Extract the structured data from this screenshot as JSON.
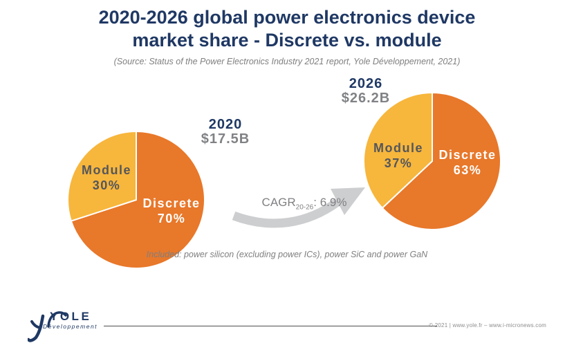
{
  "title": {
    "line1": "2020-2026 global power electronics device",
    "line2": "market share - Discrete vs. module"
  },
  "source_note": "(Source: Status of the Power Electronics Industry 2021 report, Yole Développement, 2021)",
  "chart_data": [
    {
      "type": "pie",
      "title": "2020",
      "subtitle": "$17.5B",
      "categories": [
        "Discrete",
        "Module"
      ],
      "values": [
        70,
        30
      ],
      "unit": "percent",
      "labels_position": "inside",
      "slices": [
        {
          "label": "Discrete",
          "pct": 70,
          "display": "70%",
          "color": "#E8782A",
          "text_color": "#FFFFFF"
        },
        {
          "label": "Module",
          "pct": 30,
          "display": "30%",
          "color": "#F7B63C",
          "text_color": "#54565B"
        }
      ]
    },
    {
      "type": "pie",
      "title": "2026",
      "subtitle": "$26.2B",
      "categories": [
        "Discrete",
        "Module"
      ],
      "values": [
        63,
        37
      ],
      "unit": "percent",
      "labels_position": "inside",
      "slices": [
        {
          "label": "Discrete",
          "pct": 63,
          "display": "63%",
          "color": "#E8782A",
          "text_color": "#FFFFFF"
        },
        {
          "label": "Module",
          "pct": 37,
          "display": "37%",
          "color": "#F7B63C",
          "text_color": "#54565B"
        }
      ]
    }
  ],
  "cagr": {
    "prefix": "CAGR",
    "subscript": "20-26",
    "suffix": ": 6.9%"
  },
  "included_note": "Included: power silicon (excluding power ICs), power SiC and power GaN",
  "footer": {
    "logo_text": "YOLE",
    "logo_subtext": "Développement",
    "copyright": "© 2021 | www.yole.fr – www.i-micronews.com"
  },
  "colors": {
    "navy": "#1F3864",
    "orange": "#E8782A",
    "yellow": "#F7B63C",
    "gray_text": "#7F7F7F",
    "label_gray": "#54565B",
    "arrow_gray": "#CDCED0"
  }
}
